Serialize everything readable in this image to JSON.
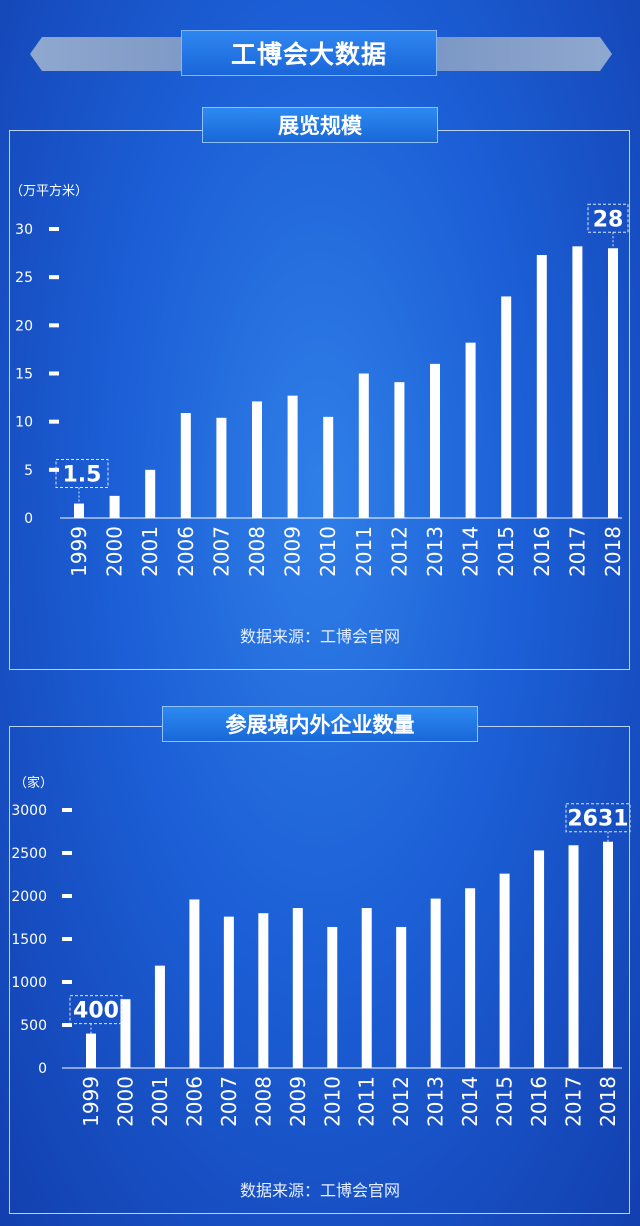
{
  "header": {
    "title": "工博会大数据"
  },
  "chart_data": [
    {
      "type": "bar",
      "title": "展览规模",
      "ylabel": "（万平方米）",
      "ylim": [
        0,
        30
      ],
      "yticks": [
        0,
        5,
        10,
        15,
        20,
        25,
        30
      ],
      "categories": [
        "1999",
        "2000",
        "2001",
        "2006",
        "2007",
        "2008",
        "2009",
        "2010",
        "2011",
        "2012",
        "2013",
        "2014",
        "2015",
        "2016",
        "2017",
        "2018"
      ],
      "values": [
        1.5,
        2.3,
        5.0,
        10.9,
        10.4,
        12.1,
        12.7,
        10.5,
        15.0,
        14.1,
        16.0,
        18.2,
        23.0,
        27.3,
        28.2,
        28
      ],
      "callouts": [
        {
          "category": "1999",
          "label": "1.5"
        },
        {
          "category": "2018",
          "label": "28"
        }
      ],
      "source": "数据来源：工博会官网"
    },
    {
      "type": "bar",
      "title": "参展境内外企业数量",
      "ylabel": "（家）",
      "ylim": [
        0,
        3000
      ],
      "yticks": [
        0,
        500,
        1000,
        1500,
        2000,
        2500,
        3000
      ],
      "categories": [
        "1999",
        "2000",
        "2001",
        "2006",
        "2007",
        "2008",
        "2009",
        "2010",
        "2011",
        "2012",
        "2013",
        "2014",
        "2015",
        "2016",
        "2017",
        "2018"
      ],
      "values": [
        400,
        800,
        1190,
        1960,
        1760,
        1800,
        1860,
        1640,
        1860,
        1640,
        1970,
        2090,
        2260,
        2530,
        2590,
        2631
      ],
      "callouts": [
        {
          "category": "1999",
          "label": "400"
        },
        {
          "category": "2018",
          "label": "2631"
        }
      ],
      "source": "数据来源：工博会官网"
    }
  ]
}
